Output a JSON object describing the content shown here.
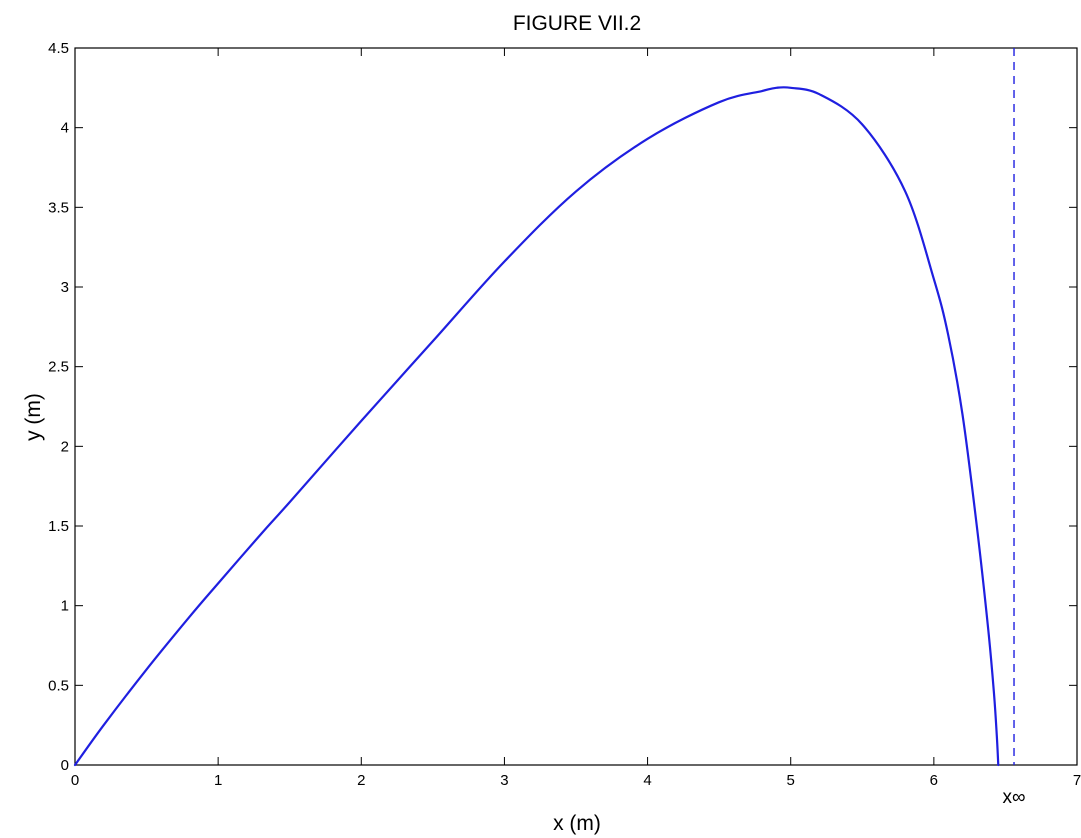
{
  "chart_data": {
    "type": "line",
    "title": "FIGURE VII.2",
    "xlabel": "x (m)",
    "ylabel": "y (m)",
    "xlim": [
      0,
      7
    ],
    "ylim": [
      0,
      4.5
    ],
    "x_ticks": [
      "0",
      "1",
      "2",
      "3",
      "4",
      "5",
      "6",
      "7"
    ],
    "y_ticks": [
      "0",
      "0.5",
      "1",
      "1.5",
      "2",
      "2.5",
      "3",
      "3.5",
      "4",
      "4.5"
    ],
    "grid": false,
    "series_color": "#1f1fe0",
    "series": [
      {
        "x": [
          0,
          0.2,
          0.5,
          0.8,
          1.0,
          1.3,
          1.5,
          2.0,
          2.5,
          3.0,
          3.5,
          4.0,
          4.5,
          4.8,
          4.9,
          5.0,
          5.2,
          5.5,
          5.8,
          6.0,
          6.1,
          6.2,
          6.3,
          6.38,
          6.42,
          6.44,
          6.45
        ],
        "y": [
          0,
          0.25,
          0.6,
          0.93,
          1.14,
          1.45,
          1.65,
          2.16,
          2.66,
          3.16,
          3.6,
          3.93,
          4.16,
          4.23,
          4.25,
          4.25,
          4.21,
          4.02,
          3.6,
          3.05,
          2.7,
          2.2,
          1.5,
          0.85,
          0.45,
          0.18,
          0
        ]
      }
    ],
    "asymptote": {
      "x": 6.56,
      "label": "x∞",
      "style": "dashed",
      "color": "#1f1fe0"
    }
  }
}
